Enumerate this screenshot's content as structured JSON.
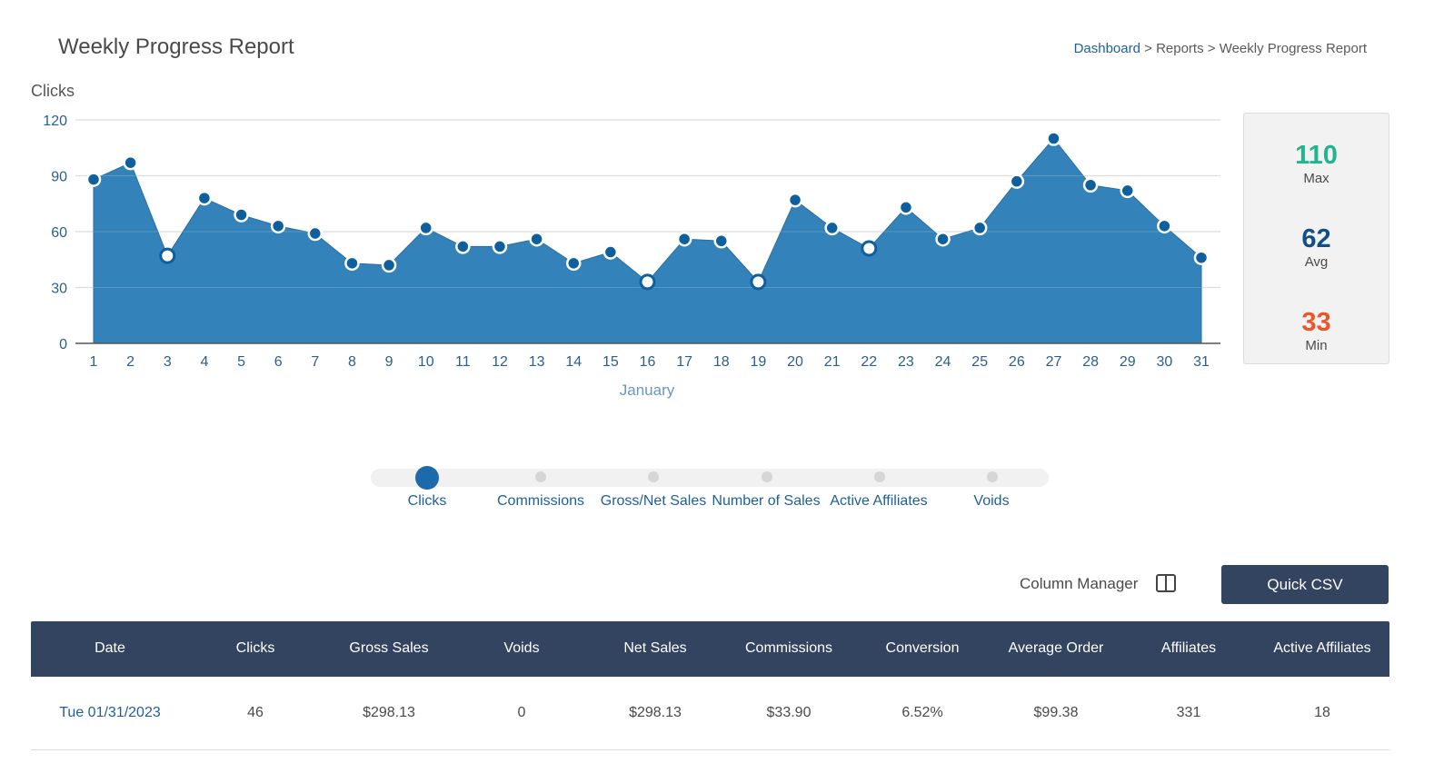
{
  "header": {
    "title": "Weekly Progress Report",
    "breadcrumb": {
      "dashboard": "Dashboard",
      "sep1": " > ",
      "reports": "Reports",
      "sep2": " > ",
      "current": "Weekly Progress Report"
    }
  },
  "chart_data": {
    "type": "area",
    "title": "Clicks",
    "xlabel": "January",
    "ylabel": "",
    "x": [
      1,
      2,
      3,
      4,
      5,
      6,
      7,
      8,
      9,
      10,
      11,
      12,
      13,
      14,
      15,
      16,
      17,
      18,
      19,
      20,
      21,
      22,
      23,
      24,
      25,
      26,
      27,
      28,
      29,
      30,
      31
    ],
    "series": [
      {
        "values": [
          88,
          97,
          47,
          78,
          69,
          63,
          59,
          43,
          42,
          62,
          52,
          52,
          56,
          43,
          49,
          33,
          56,
          55,
          33,
          77,
          62,
          51,
          73,
          56,
          62,
          87,
          110,
          85,
          82,
          63,
          46
        ]
      }
    ],
    "ylim": [
      0,
      120
    ],
    "yticks": [
      0,
      30,
      60,
      90,
      120
    ],
    "grid": true,
    "colors": {
      "fill": "#3382b9",
      "point": "#0e5f9e",
      "hollow_point_stroke": "#0e5f9e"
    },
    "hollow_points": [
      3,
      16,
      19,
      22
    ]
  },
  "stats": {
    "max": {
      "value": "110",
      "label": "Max",
      "color": "#1fb58f"
    },
    "avg": {
      "value": "62",
      "label": "Avg",
      "color": "#124f86"
    },
    "min": {
      "value": "33",
      "label": "Min",
      "color": "#e8562a"
    }
  },
  "metric_selector": {
    "active_index": 0,
    "items": [
      "Clicks",
      "Commissions",
      "Gross/Net Sales",
      "Number of Sales",
      "Active Affiliates",
      "Voids"
    ]
  },
  "toolbar": {
    "column_manager_label": "Column Manager",
    "csv_label": "Quick CSV"
  },
  "table": {
    "headers": [
      "Date",
      "Clicks",
      "Gross Sales",
      "Voids",
      "Net Sales",
      "Commissions",
      "Conversion",
      "Average Order",
      "Affiliates",
      "Active Affiliates"
    ],
    "rows": [
      [
        "Tue 01/31/2023",
        "46",
        "$298.13",
        "0",
        "$298.13",
        "$33.90",
        "6.52%",
        "$99.38",
        "331",
        "18"
      ]
    ]
  }
}
